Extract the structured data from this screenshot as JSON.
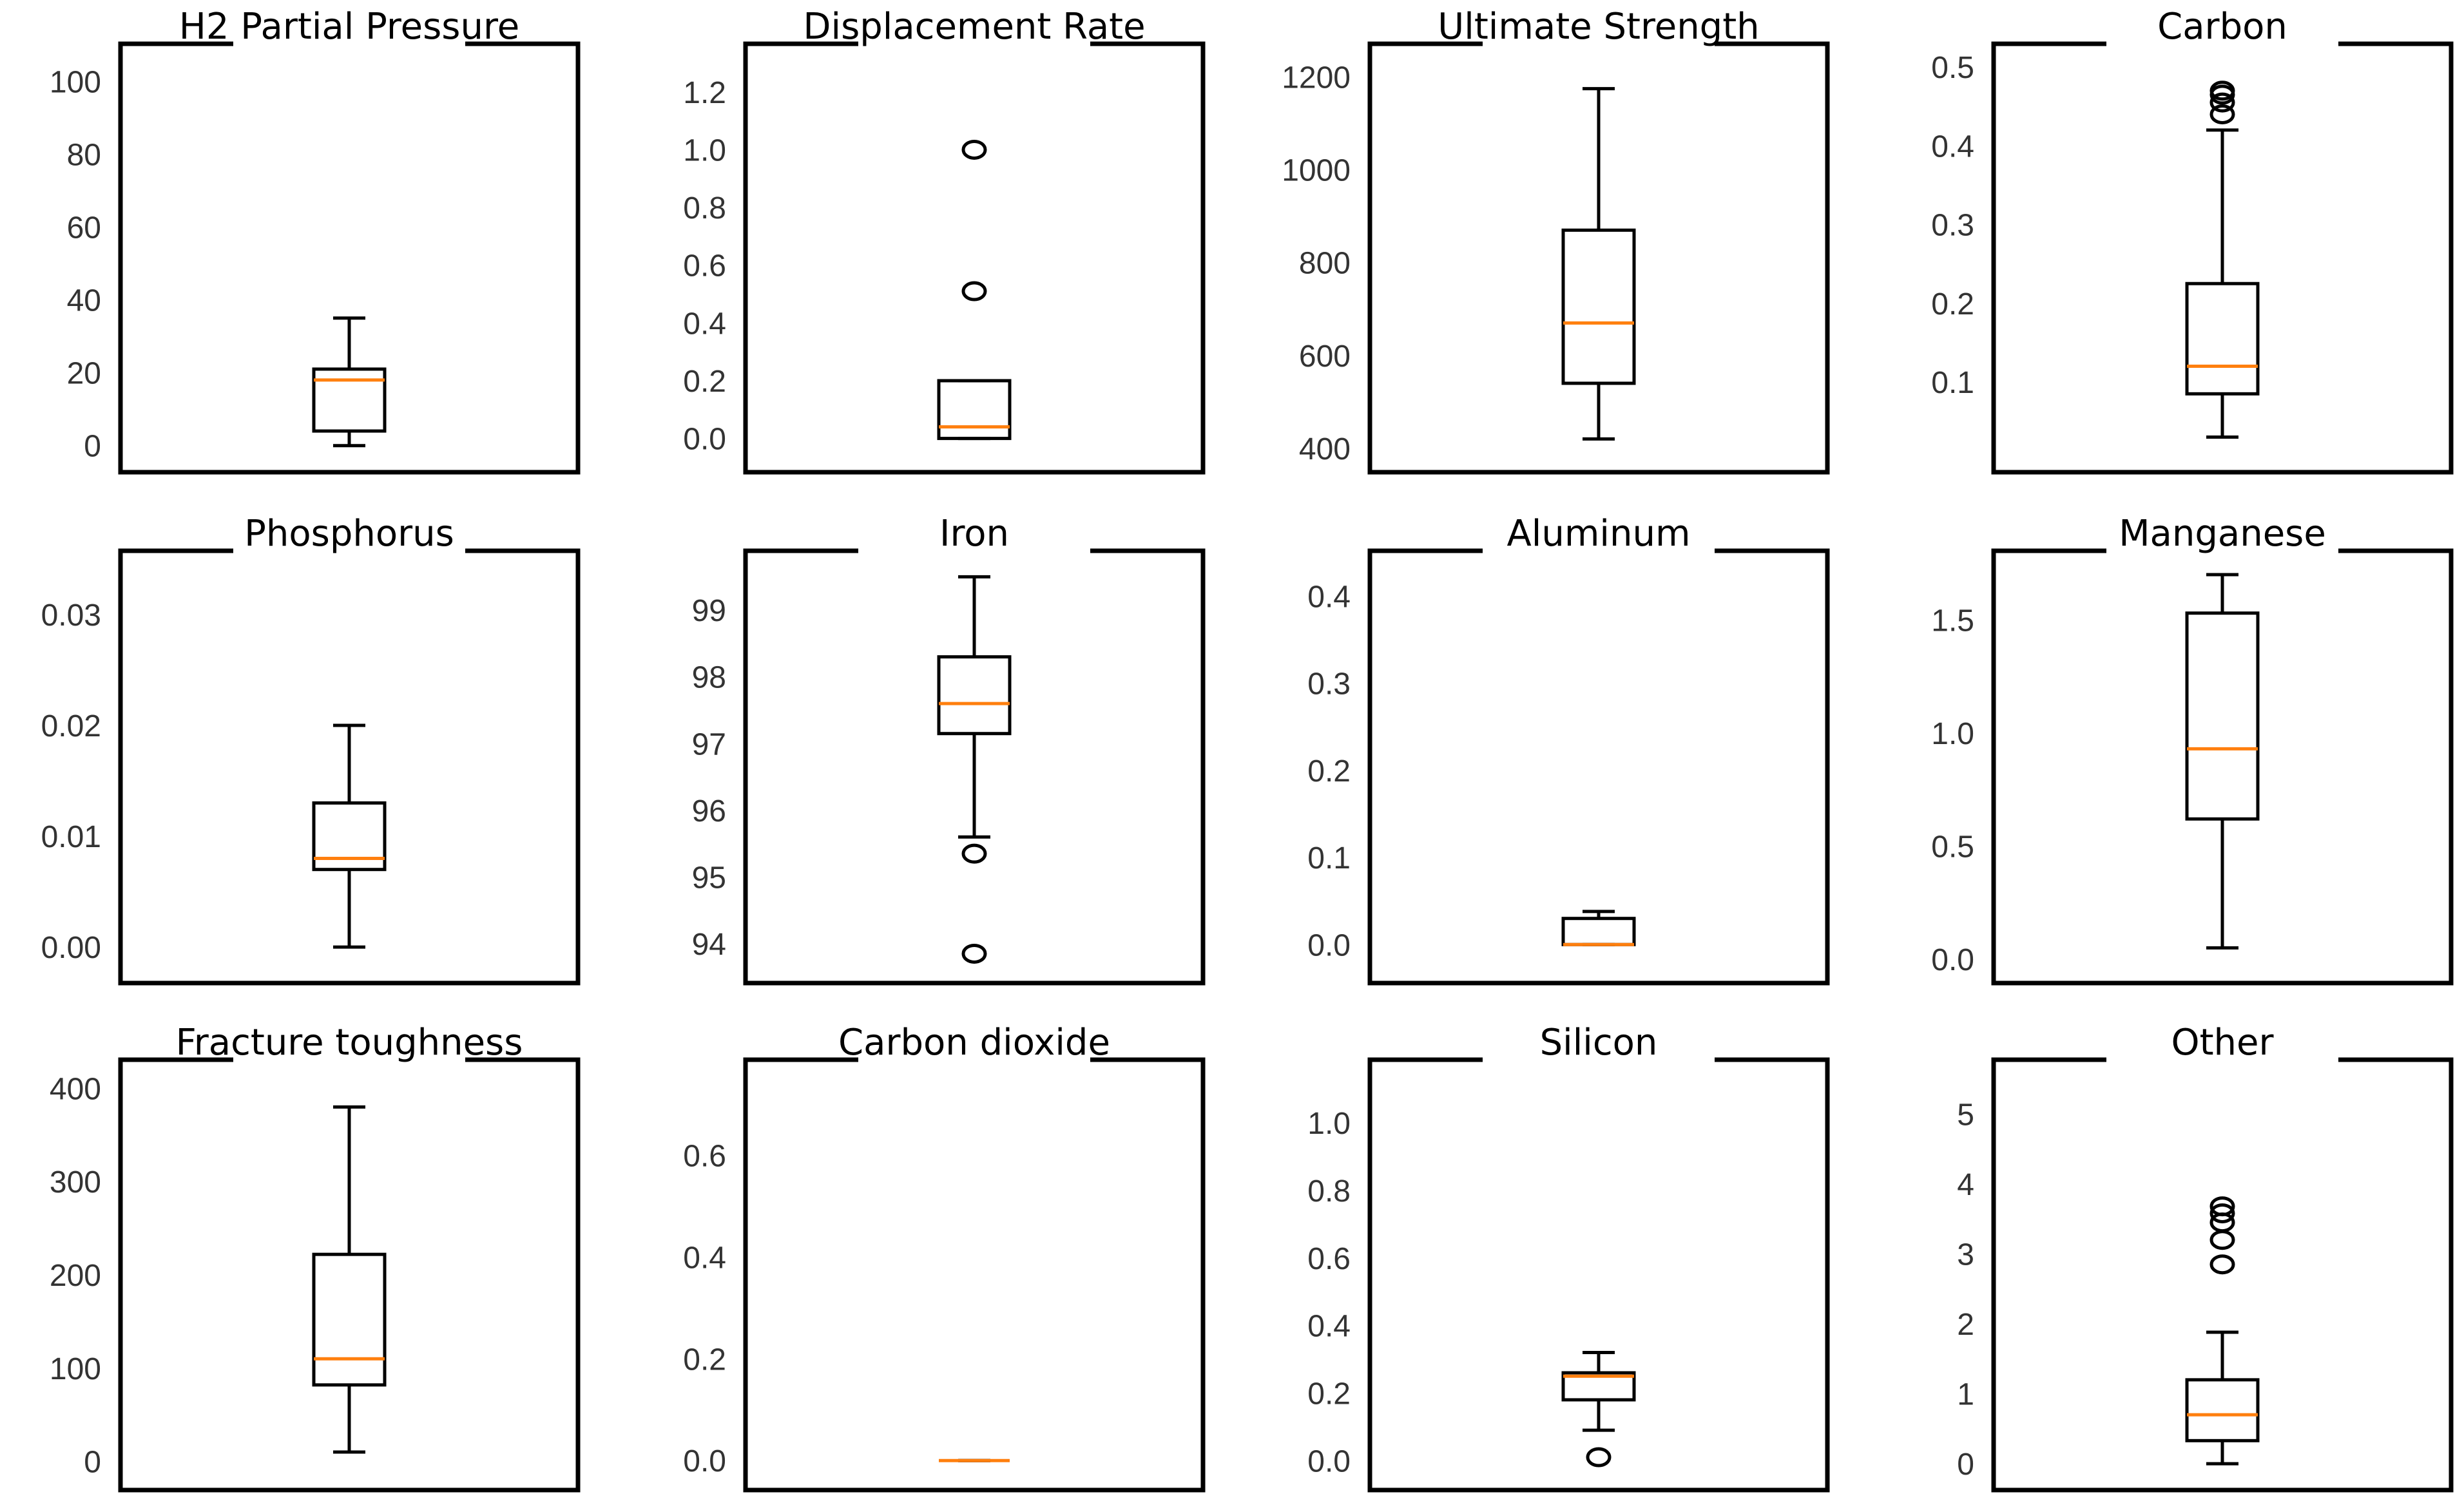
{
  "colors": {
    "frame": "#000000",
    "median": "#ff7f0e",
    "text": "#333333",
    "title": "#000000",
    "background": "#ffffff"
  },
  "chart_data": [
    {
      "type": "box",
      "title": "H2 Partial Pressure",
      "ylim": [
        -2,
        105
      ],
      "ticks": [
        0,
        20,
        40,
        60,
        80,
        100
      ],
      "tick_labels": [
        "0",
        "20",
        "40",
        "60",
        "80",
        "100"
      ],
      "box": {
        "whislo": 0,
        "q1": 4,
        "med": 18,
        "q3": 21,
        "whishi": 35
      },
      "fliers": []
    },
    {
      "type": "box",
      "title": "Displacement Rate",
      "ylim": [
        -0.05,
        1.3
      ],
      "ticks": [
        0.0,
        0.2,
        0.4,
        0.6,
        0.8,
        1.0,
        1.2
      ],
      "tick_labels": [
        "0.0",
        "0.2",
        "0.4",
        "0.6",
        "0.8",
        "1.0",
        "1.2"
      ],
      "box": {
        "whislo": 0.0,
        "q1": 0.0,
        "med": 0.04,
        "q3": 0.2,
        "whishi": 0.2
      },
      "fliers": [
        0.51,
        1.0
      ]
    },
    {
      "type": "box",
      "title": "Ultimate Strength",
      "ylim": [
        390,
        1230
      ],
      "ticks": [
        400,
        600,
        800,
        1000,
        1200
      ],
      "tick_labels": [
        "400",
        "600",
        "800",
        "1000",
        "1200"
      ],
      "box": {
        "whislo": 420,
        "q1": 540,
        "med": 670,
        "q3": 870,
        "whishi": 1175
      },
      "fliers": []
    },
    {
      "type": "box",
      "title": "Carbon",
      "ylim": [
        0.01,
        0.505
      ],
      "ticks": [
        0.1,
        0.2,
        0.3,
        0.4,
        0.5
      ],
      "tick_labels": [
        "0.1",
        "0.2",
        "0.3",
        "0.4",
        "0.5"
      ],
      "box": {
        "whislo": 0.03,
        "q1": 0.085,
        "med": 0.12,
        "q3": 0.225,
        "whishi": 0.42
      },
      "fliers": [
        0.44,
        0.455,
        0.465,
        0.47
      ]
    },
    {
      "type": "box",
      "title": "Phosphorus",
      "ylim": [
        -0.0015,
        0.034
      ],
      "ticks": [
        0.0,
        0.01,
        0.02,
        0.03
      ],
      "tick_labels": [
        "0.00",
        "0.01",
        "0.02",
        "0.03"
      ],
      "box": {
        "whislo": 0.0,
        "q1": 0.007,
        "med": 0.008,
        "q3": 0.013,
        "whishi": 0.02
      },
      "fliers": []
    },
    {
      "type": "box",
      "title": "Iron",
      "ylim": [
        93.7,
        99.6
      ],
      "ticks": [
        94,
        95,
        96,
        97,
        98,
        99
      ],
      "tick_labels": [
        "94",
        "95",
        "96",
        "97",
        "98",
        "99"
      ],
      "box": {
        "whislo": 95.6,
        "q1": 97.15,
        "med": 97.6,
        "q3": 98.3,
        "whishi": 99.5
      },
      "fliers": [
        95.35,
        93.85
      ]
    },
    {
      "type": "box",
      "title": "Aluminum",
      "ylim": [
        -0.022,
        0.43
      ],
      "ticks": [
        0.0,
        0.1,
        0.2,
        0.3,
        0.4
      ],
      "tick_labels": [
        "0.0",
        "0.1",
        "0.2",
        "0.3",
        "0.4"
      ],
      "box": {
        "whislo": 0.0,
        "q1": 0.0,
        "med": 0.0,
        "q3": 0.03,
        "whishi": 0.038
      },
      "fliers": []
    },
    {
      "type": "box",
      "title": "Manganese",
      "ylim": [
        -0.02,
        1.72
      ],
      "ticks": [
        0.0,
        0.5,
        1.0,
        1.5
      ],
      "tick_labels": [
        "0.0",
        "0.5",
        "1.0",
        "1.5"
      ],
      "box": {
        "whislo": 0.05,
        "q1": 0.62,
        "med": 0.93,
        "q3": 1.53,
        "whishi": 1.7
      },
      "fliers": []
    },
    {
      "type": "box",
      "title": "Fracture toughness",
      "ylim": [
        -10,
        410
      ],
      "ticks": [
        0,
        100,
        200,
        300,
        400
      ],
      "tick_labels": [
        "0",
        "100",
        "200",
        "300",
        "400"
      ],
      "box": {
        "whislo": 10,
        "q1": 82,
        "med": 110,
        "q3": 222,
        "whishi": 380
      },
      "fliers": []
    },
    {
      "type": "box",
      "title": "Carbon dioxide",
      "ylim": [
        -0.02,
        0.75
      ],
      "ticks": [
        0.0,
        0.2,
        0.4,
        0.6
      ],
      "tick_labels": [
        "0.0",
        "0.2",
        "0.4",
        "0.6"
      ],
      "box": {
        "whislo": 0.0,
        "q1": 0.0,
        "med": 0.0,
        "q3": 0.0,
        "whishi": 0.0
      },
      "fliers": []
    },
    {
      "type": "box",
      "title": "Silicon",
      "ylim": [
        -0.03,
        1.13
      ],
      "ticks": [
        0.0,
        0.2,
        0.4,
        0.6,
        0.8,
        1.0
      ],
      "tick_labels": [
        "0.0",
        "0.2",
        "0.4",
        "0.6",
        "0.8",
        "1.0"
      ],
      "box": {
        "whislo": 0.09,
        "q1": 0.18,
        "med": 0.25,
        "q3": 0.26,
        "whishi": 0.32
      },
      "fliers": [
        0.01
      ]
    },
    {
      "type": "box",
      "title": "Other",
      "ylim": [
        -0.1,
        5.5
      ],
      "ticks": [
        0,
        1,
        2,
        3,
        4,
        5
      ],
      "tick_labels": [
        "0",
        "1",
        "2",
        "3",
        "4",
        "5"
      ],
      "box": {
        "whislo": 0.0,
        "q1": 0.33,
        "med": 0.7,
        "q3": 1.2,
        "whishi": 1.88
      },
      "fliers": [
        2.85,
        3.2,
        3.45,
        3.58,
        3.68
      ]
    }
  ]
}
